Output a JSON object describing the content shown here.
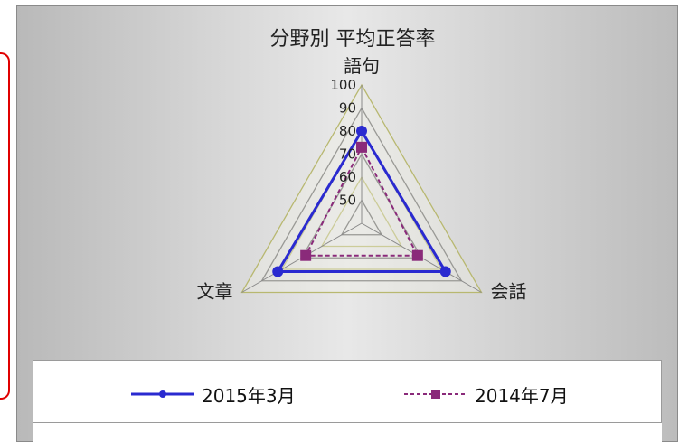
{
  "chart_data": {
    "type": "radar",
    "title": "分野別 平均正答率",
    "axes": [
      "語句",
      "会話",
      "文章"
    ],
    "rlim": [
      40,
      100
    ],
    "ticks": [
      50,
      60,
      70,
      80,
      90,
      100
    ],
    "series": [
      {
        "name": "2015年3月",
        "color": "#2a2ad0",
        "values": [
          80,
          82,
          82
        ]
      },
      {
        "name": "2014年7月",
        "color": "#8a2a7a",
        "values": [
          73,
          68,
          68
        ]
      }
    ]
  }
}
